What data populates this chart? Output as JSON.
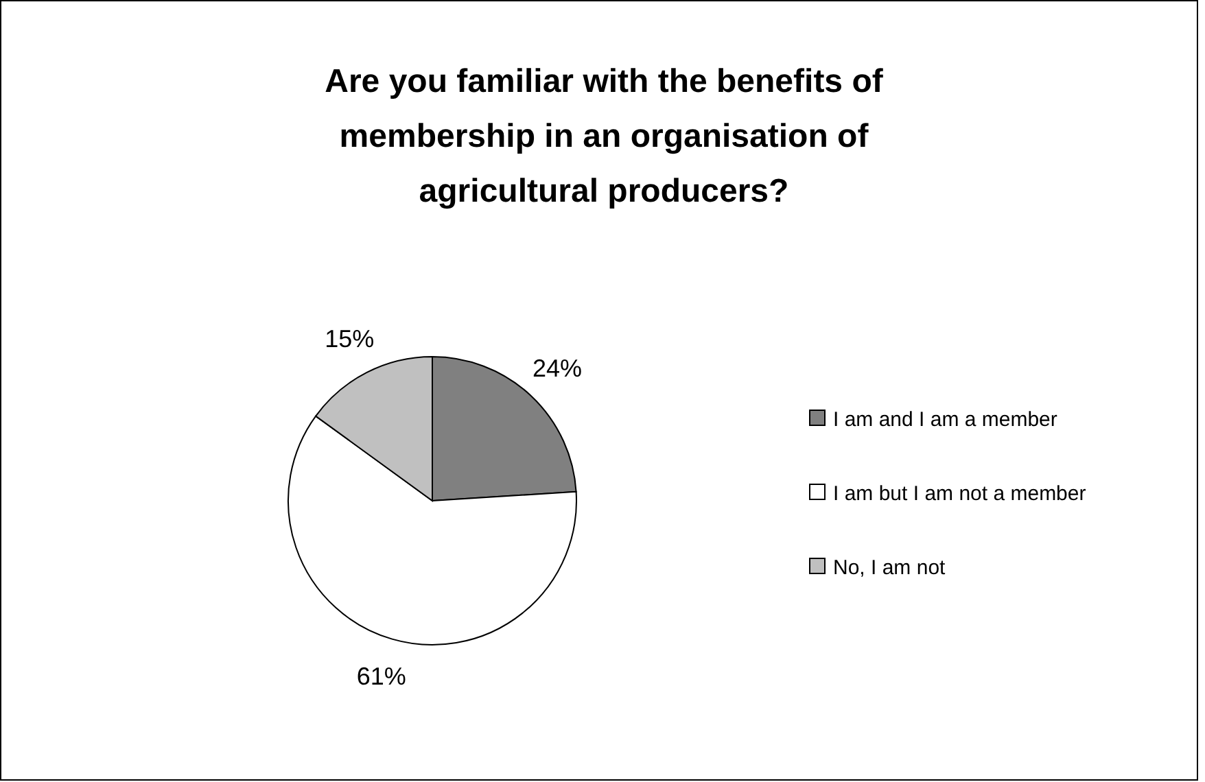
{
  "chart_data": {
    "type": "pie",
    "title": "Are you familiar with the benefits of membership in an organisation of agricultural producers?",
    "categories": [
      "I am and I am a member",
      "I am but I am not a member",
      "No, I am not"
    ],
    "values": [
      24,
      61,
      15
    ],
    "value_labels": [
      "24%",
      "61%",
      "15%"
    ],
    "colors": [
      "#808080",
      "#ffffff",
      "#c0c0c0"
    ],
    "legend": "right"
  }
}
